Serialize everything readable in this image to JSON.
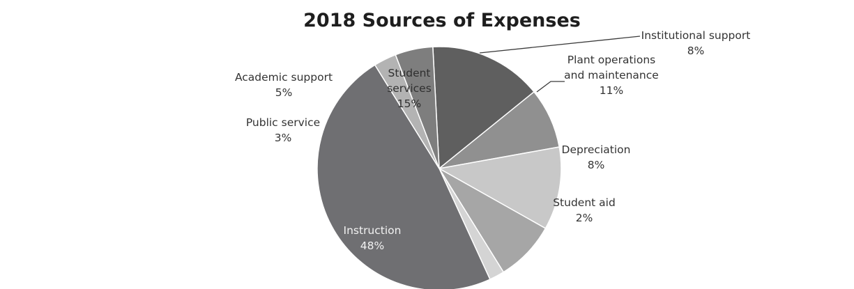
{
  "chart_data": {
    "type": "pie",
    "title": "2018 Sources of Expenses",
    "slices": [
      {
        "key": "student-services",
        "label_lines": [
          "Student",
          "services"
        ],
        "percent_text": "15%",
        "value": 15,
        "color": "#5f5f5f"
      },
      {
        "key": "institutional-support",
        "label_lines": [
          "Institutional support"
        ],
        "percent_text": "8%",
        "value": 8,
        "color": "#909090"
      },
      {
        "key": "plant-operations",
        "label_lines": [
          "Plant operations",
          "and maintenance"
        ],
        "percent_text": "11%",
        "value": 11,
        "color": "#c8c8c8"
      },
      {
        "key": "depreciation",
        "label_lines": [
          "Depreciation"
        ],
        "percent_text": "8%",
        "value": 8,
        "color": "#a6a6a6"
      },
      {
        "key": "student-aid",
        "label_lines": [
          "Student aid"
        ],
        "percent_text": "2%",
        "value": 2,
        "color": "#d4d4d4"
      },
      {
        "key": "instruction",
        "label_lines": [
          "Instruction"
        ],
        "percent_text": "48%",
        "value": 48,
        "color": "#6f6f72"
      },
      {
        "key": "public-service",
        "label_lines": [
          "Public service"
        ],
        "percent_text": "3%",
        "value": 3,
        "color": "#b3b3b3"
      },
      {
        "key": "academic-support",
        "label_lines": [
          "Academic support"
        ],
        "percent_text": "5%",
        "value": 5,
        "color": "#7e7e7e"
      }
    ]
  }
}
